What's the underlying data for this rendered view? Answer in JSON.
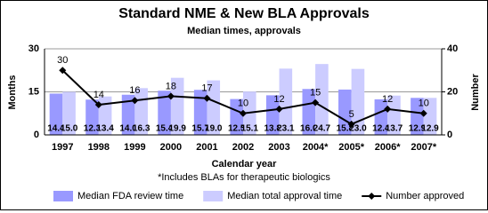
{
  "chart_data": {
    "type": "bar",
    "title": "Standard NME & New BLA Approvals",
    "subtitle": "Median times, approvals",
    "categories": [
      "1997",
      "1998",
      "1999",
      "2000",
      "2001",
      "2002",
      "2003",
      "2004*",
      "2005*",
      "2006*",
      "2007*"
    ],
    "series": [
      {
        "name": "Median FDA review time",
        "color": "#9999ff",
        "values": [
          14.4,
          12.3,
          14,
          15.4,
          15.7,
          12.5,
          13.8,
          16,
          15.8,
          12.4,
          12.9
        ],
        "value_labels": [
          "14.4",
          "12.3",
          "14.0",
          "15.4",
          "15.7",
          "12.5",
          "13.8",
          "16.0",
          "15.8",
          "12.4",
          "12.9"
        ]
      },
      {
        "name": "Median total approval time",
        "color": "#ccccff",
        "values": [
          15,
          13.4,
          16.3,
          19.9,
          19,
          15.1,
          23.1,
          24.7,
          23,
          13.7,
          12.9
        ],
        "value_labels": [
          "15.0",
          "13.4",
          "16.3",
          "19.9",
          "19.0",
          "15.1",
          "23.1",
          "24.7",
          "23.0",
          "13.7",
          "12.9"
        ]
      },
      {
        "name": "Number approved",
        "color": "#000000",
        "type": "line",
        "axis": "y2",
        "values": [
          30,
          14,
          16,
          18,
          17,
          10,
          12,
          15,
          5,
          12,
          10
        ]
      }
    ],
    "xlabel": "Calendar year",
    "ylabel": "Months",
    "y2label": "Number",
    "footnote": "*Includes BLAs for therapeutic biologics",
    "ylim": [
      0,
      30
    ],
    "yticks": [
      0,
      15,
      30
    ],
    "y2lim": [
      0,
      40
    ],
    "y2ticks": [
      0,
      20,
      40
    ],
    "grid": true
  }
}
